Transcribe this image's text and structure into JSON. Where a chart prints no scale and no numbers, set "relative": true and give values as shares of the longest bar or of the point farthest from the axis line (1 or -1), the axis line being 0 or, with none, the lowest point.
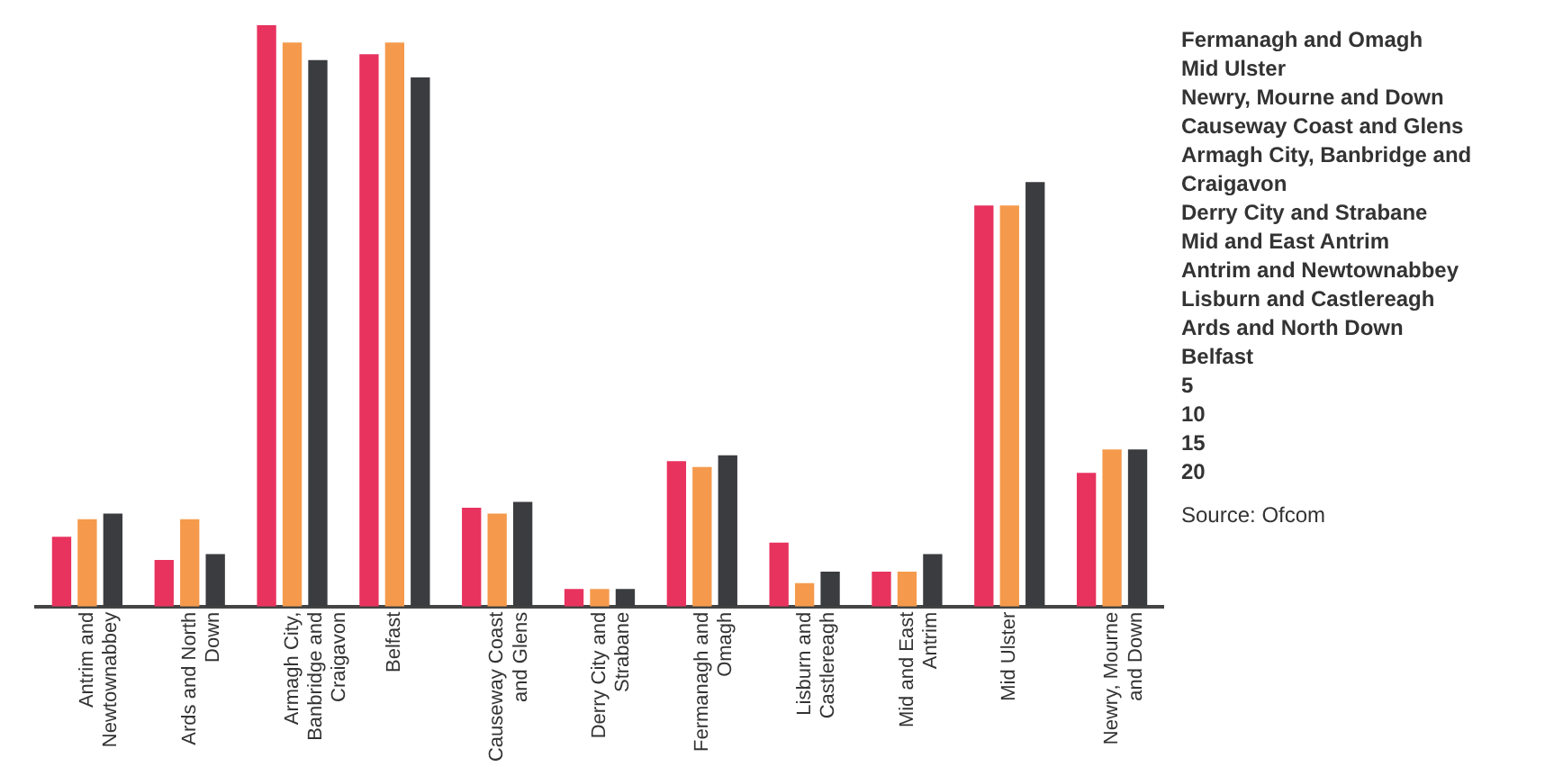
{
  "chart_data": {
    "type": "bar",
    "relative": true,
    "categories": [
      "Antrim and Newtownabbey",
      "Ards and North Down",
      "Armagh City, Banbridge and Craigavon",
      "Belfast",
      "Causeway Coast and Glens",
      "Derry City and Strabane",
      "Fermanagh and Omagh",
      "Lisburn and Castlereagh",
      "Mid and East Antrim",
      "Mid Ulster",
      "Newry, Mourne and Down"
    ],
    "series": [
      {
        "color": "#e8335f",
        "values": [
          0.12,
          0.08,
          1,
          0.95,
          0.17,
          0.03,
          0.25,
          0.11,
          0.06,
          0.69,
          0.23
        ]
      },
      {
        "color": "#f59a4c",
        "values": [
          0.15,
          0.15,
          0.97,
          0.97,
          0.16,
          0.03,
          0.24,
          0.04,
          0.06,
          0.69,
          0.27
        ]
      },
      {
        "color": "#3a3c3f",
        "values": [
          0.16,
          0.09,
          0.94,
          0.91,
          0.18,
          0.03,
          0.26,
          0.06,
          0.09,
          0.73,
          0.27
        ]
      }
    ],
    "annotations": [
      "Fermanagh and Omagh",
      "Mid Ulster",
      "Newry, Mourne and Down",
      "Causeway Coast and Glens",
      "Armagh City, Banbridge and Craigavon",
      "Derry City and Strabane",
      "Mid and East Antrim",
      "Antrim and Newtownabbey",
      "Lisburn and Castlereagh",
      "Ards and North Down",
      "Belfast",
      "5",
      "10",
      "15",
      "20",
      "Source: Ofcom"
    ],
    "grid": false,
    "legend": false
  }
}
